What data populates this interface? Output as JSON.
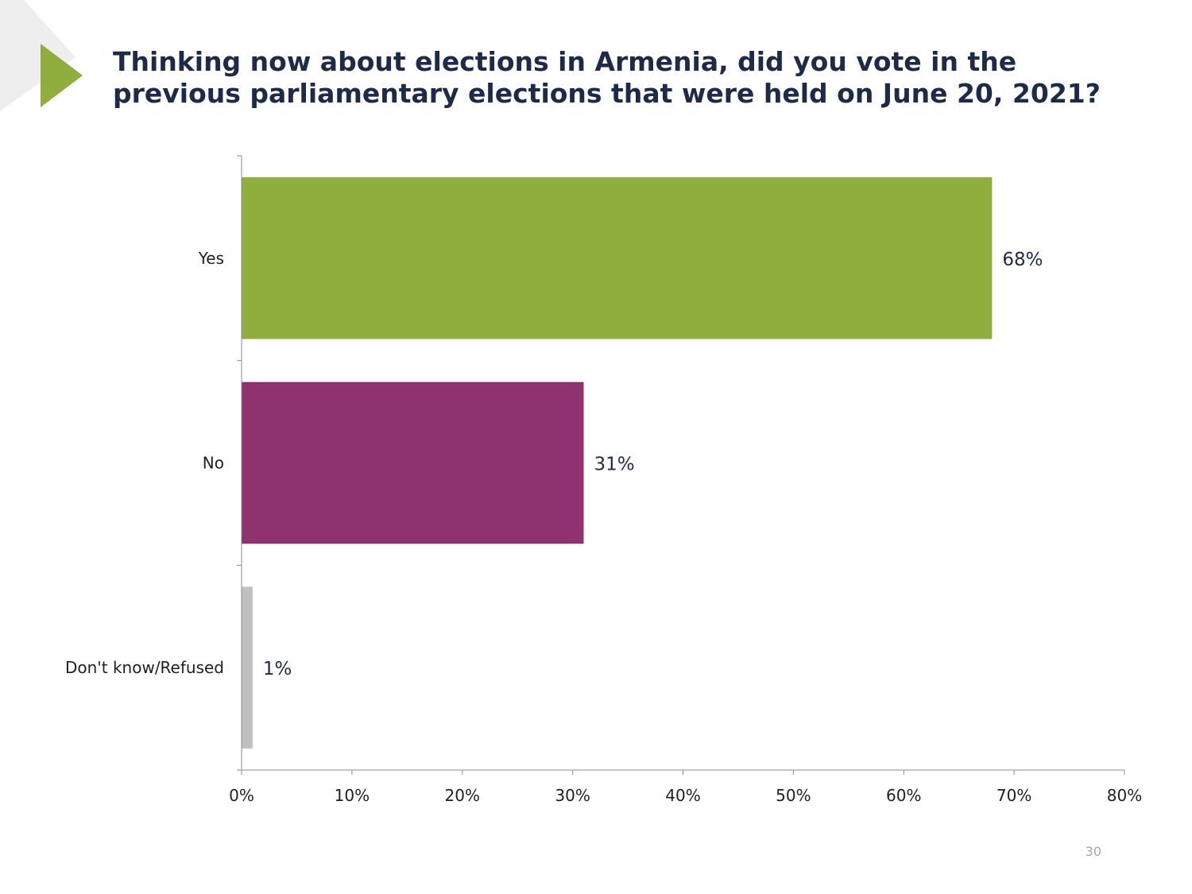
{
  "slide": {
    "title": "Thinking now about elections in Armenia, did you vote in the previous parliamentary elections that were held on June 20, 2021?",
    "page_number": "30"
  },
  "colors": {
    "title": "#1c2b4a",
    "accent_arrow": "#8fae3e",
    "corner_shape": "#eeeeee",
    "axis": "#8c8c8c",
    "text": "#1f1f1f"
  },
  "chart_data": {
    "type": "bar",
    "orientation": "horizontal",
    "categories": [
      "Yes",
      "No",
      "Don't know/Refused"
    ],
    "values": [
      68,
      31,
      1
    ],
    "value_labels": [
      "68%",
      "31%",
      "1%"
    ],
    "bar_colors": [
      "#8fae3e",
      "#8e3270",
      "#c0c0c0"
    ],
    "xlim": [
      0,
      80
    ],
    "xticks": [
      0,
      10,
      20,
      30,
      40,
      50,
      60,
      70,
      80
    ],
    "xtick_labels": [
      "0%",
      "10%",
      "20%",
      "30%",
      "40%",
      "50%",
      "60%",
      "70%",
      "80%"
    ],
    "grid": false,
    "legend": "none"
  }
}
